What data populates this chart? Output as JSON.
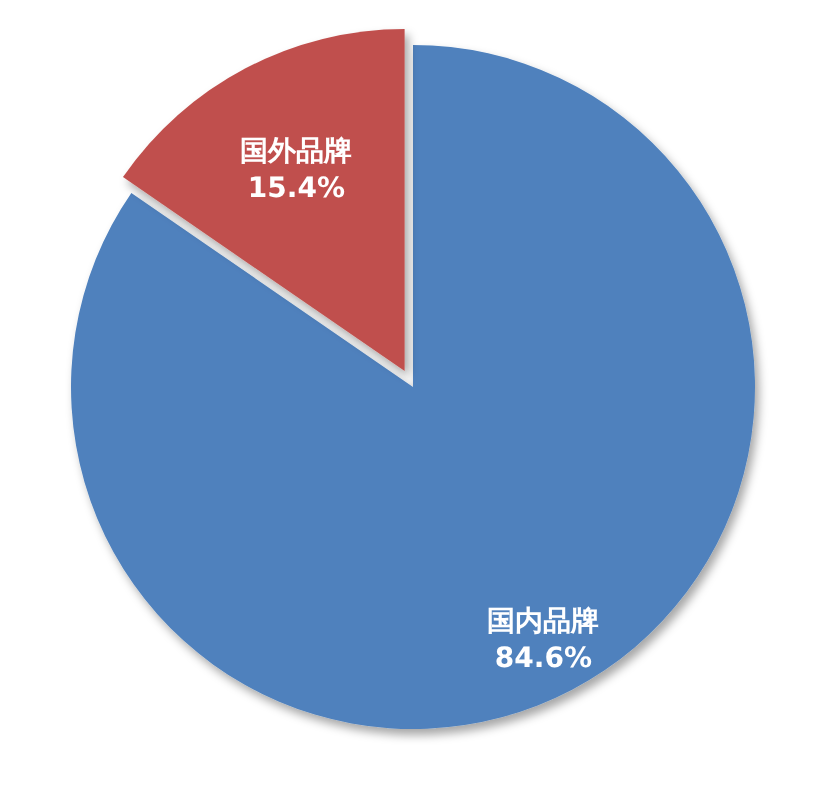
{
  "chart_data": {
    "type": "pie",
    "categories": [
      "国内品牌",
      "国外品牌"
    ],
    "values": [
      84.6,
      15.4
    ],
    "colors": [
      "#4f81bd",
      "#c0504d"
    ],
    "value_labels": [
      "84.6%",
      "15.4%"
    ]
  }
}
